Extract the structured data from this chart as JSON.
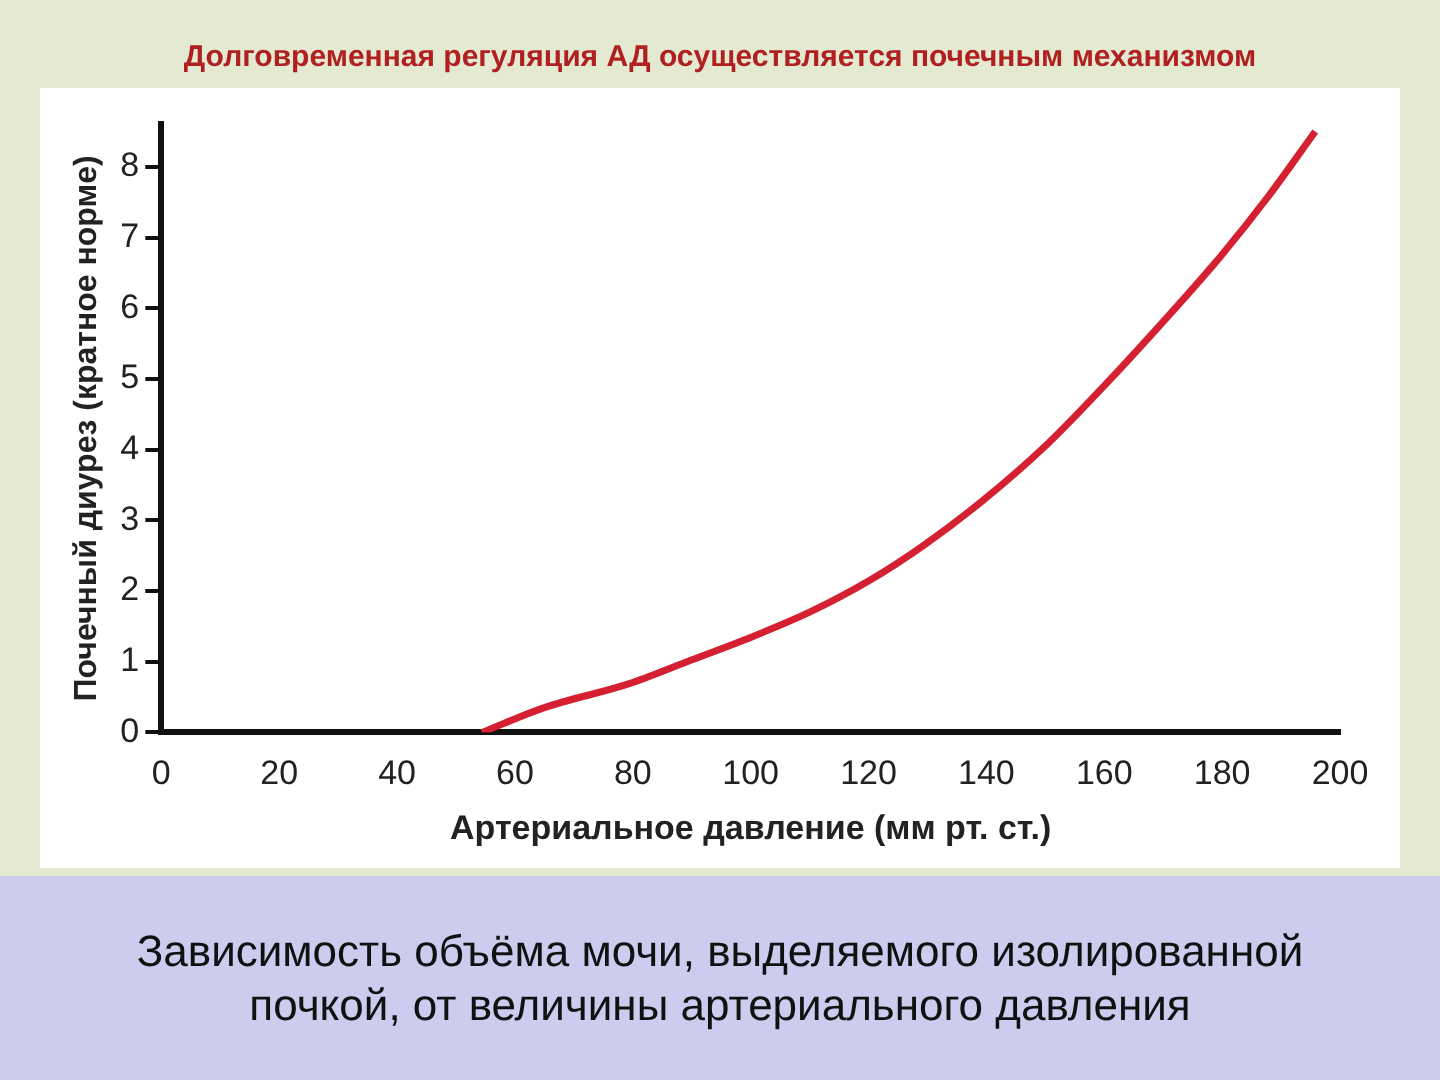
{
  "chart_data": {
    "type": "line",
    "title": "Долговременная регуляция АД осуществляется почечным механизмом",
    "xlabel": "Артериальное давление (мм рт. ст.)",
    "ylabel": "Почечный диурез (кратное норме)",
    "annotations": [
      "Зависимость объёма мочи, выделяемого изолированной почкой, от величины артериального давления"
    ],
    "series": [
      {
        "color": "#d42030",
        "x": [
          54.4,
          65,
          79.4,
          89.2,
          99,
          110,
          120,
          129.6,
          139.4,
          150,
          160.3,
          170,
          179.8,
          188,
          195.8
        ],
        "values": [
          0,
          0.35,
          0.69,
          1.0,
          1.31,
          1.7,
          2.14,
          2.66,
          3.28,
          4.05,
          4.93,
          5.81,
          6.74,
          7.6,
          8.5
        ]
      }
    ],
    "xlim": [
      0,
      200
    ],
    "xticks": [
      0,
      20,
      40,
      60,
      80,
      100,
      120,
      140,
      160,
      180,
      200
    ],
    "ylim": [
      0,
      8.6
    ],
    "yticks": [
      0,
      1,
      2,
      3,
      4,
      5,
      6,
      7,
      8
    ],
    "grid": false,
    "legend": false,
    "marker": "none",
    "line_style": "solid"
  }
}
